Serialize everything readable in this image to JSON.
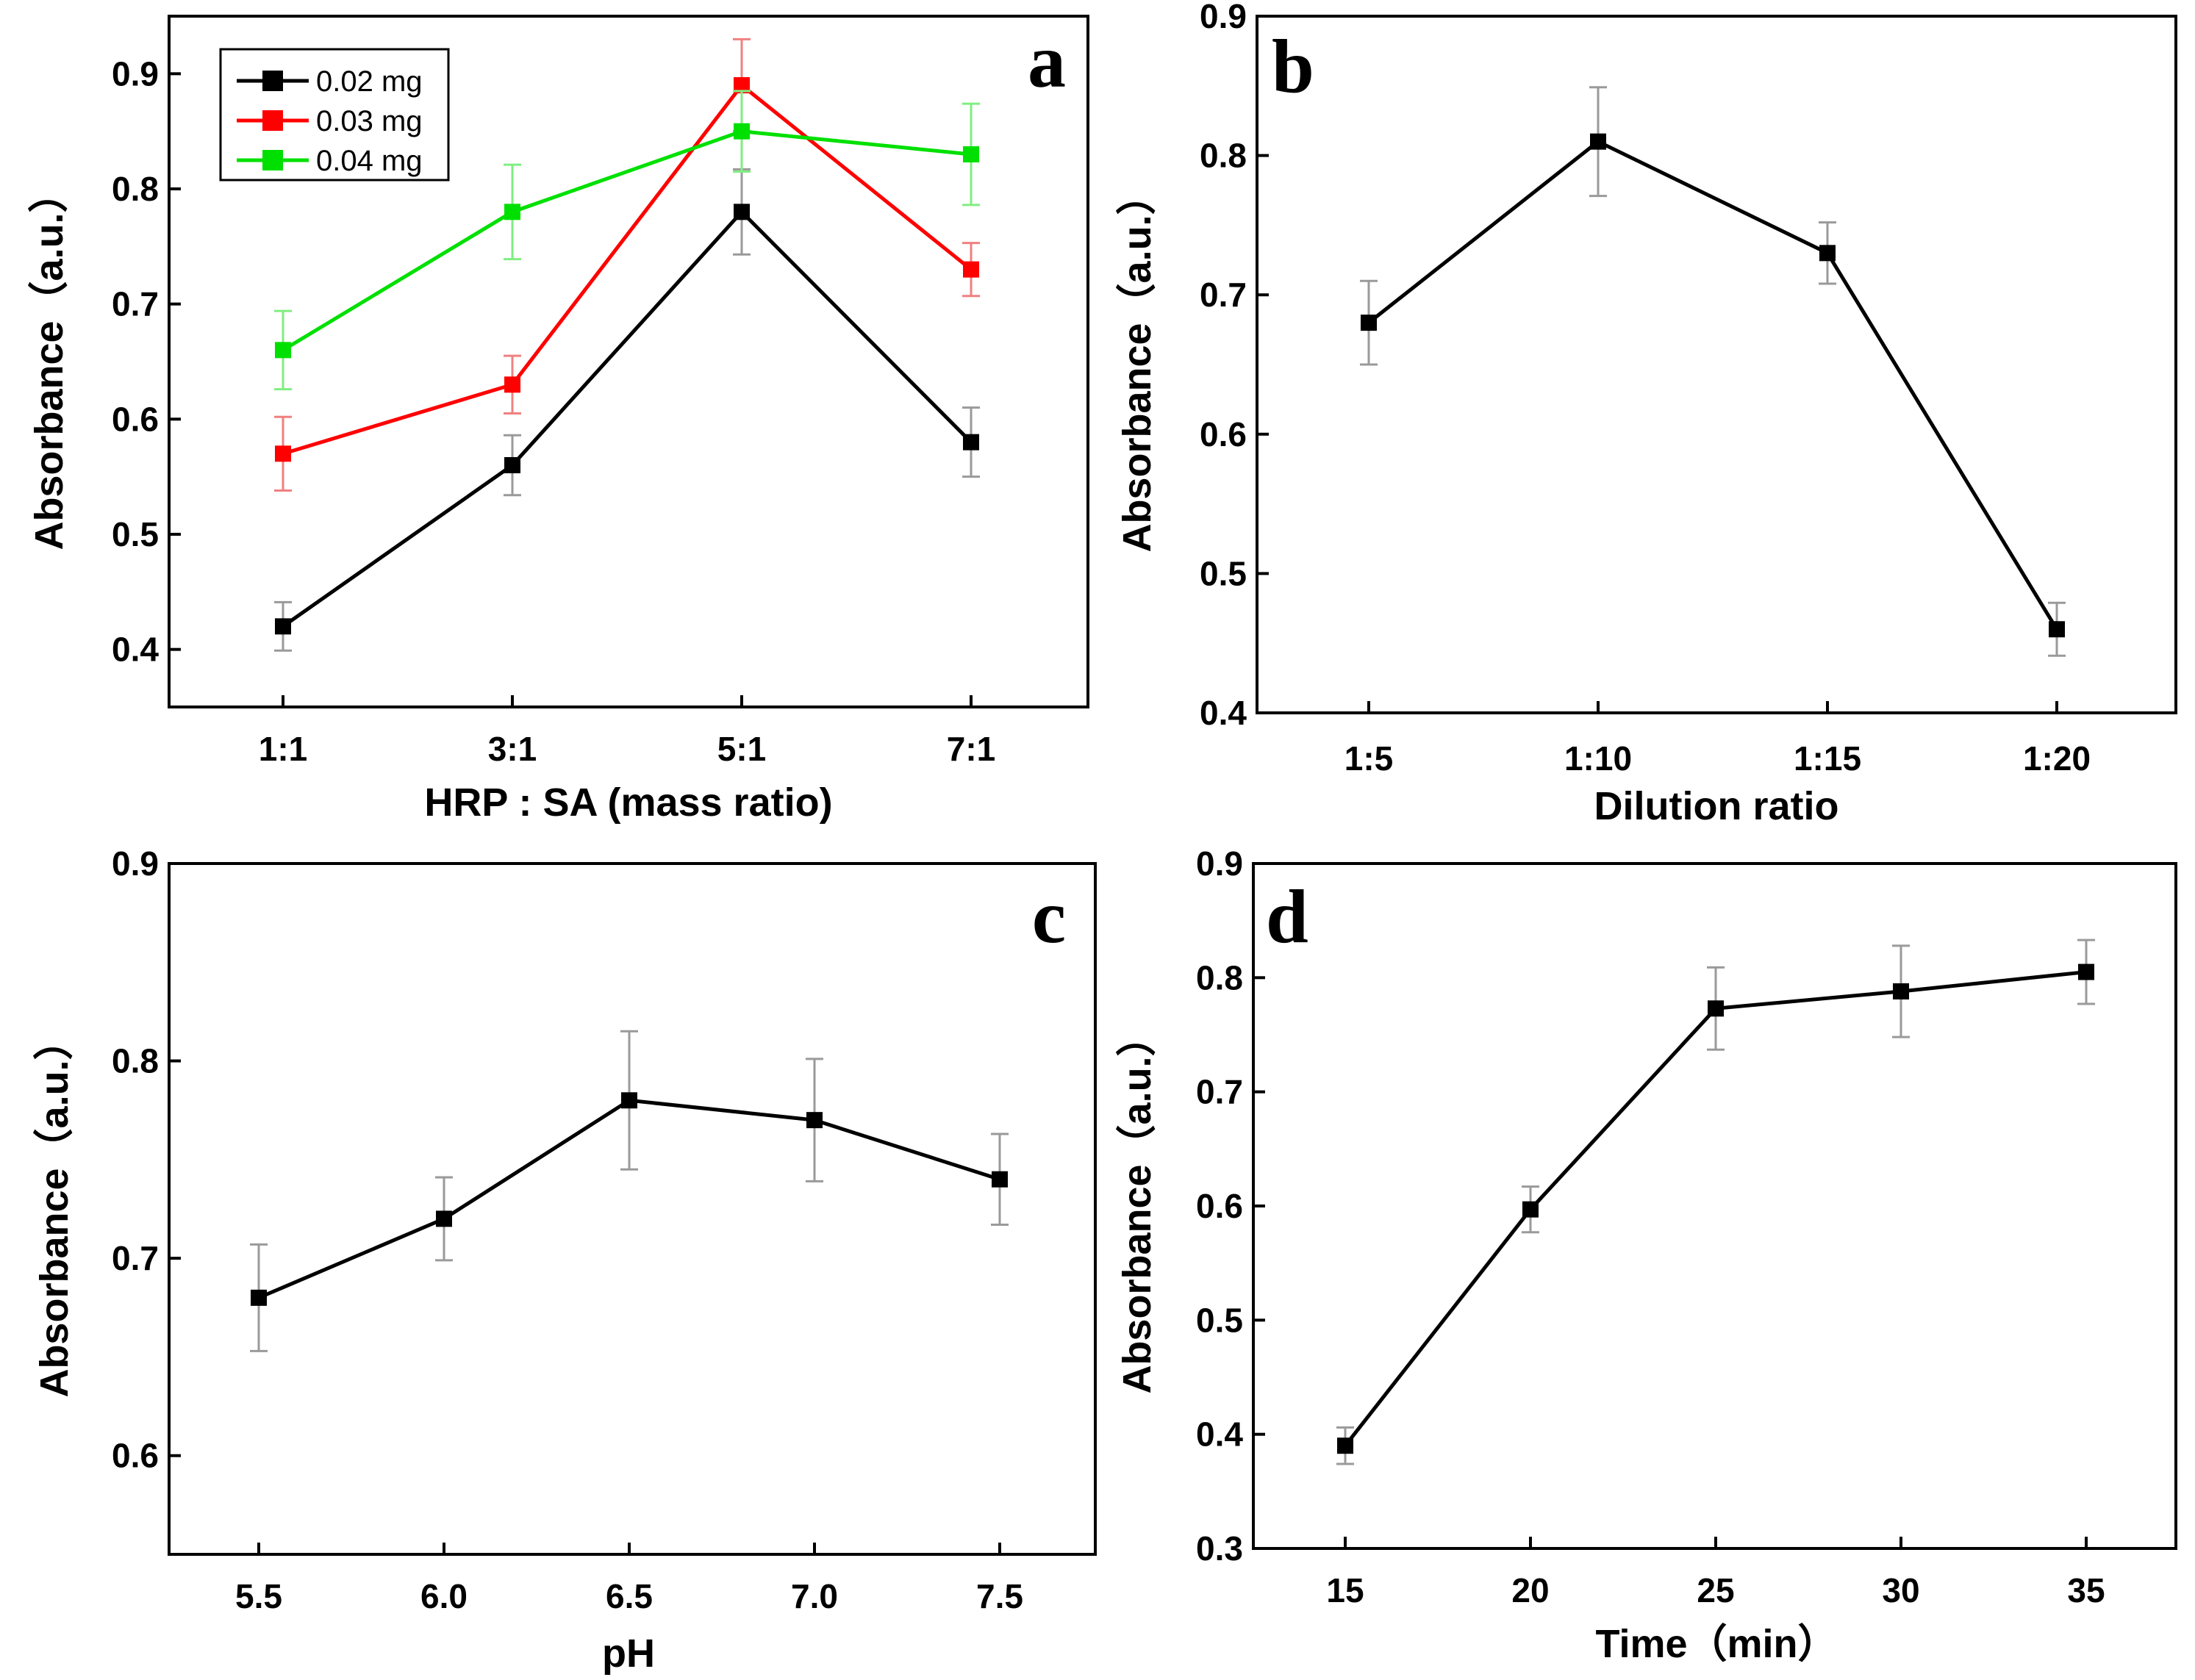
{
  "chart_data": [
    {
      "panel": "a",
      "type": "line",
      "xlabel": "HRP : SA (mass ratio)",
      "ylabel": "Absorbance（a.u.）",
      "categories": [
        "1:1",
        "3:1",
        "5:1",
        "7:1"
      ],
      "ylim": [
        0.35,
        0.95
      ],
      "yticks": [
        "0.4",
        "0.5",
        "0.6",
        "0.7",
        "0.8",
        "0.9"
      ],
      "legend_position": "top-left",
      "series": [
        {
          "name": "0.02 mg",
          "color": "#000000",
          "errColor": "#9a9a9a",
          "values": [
            0.42,
            0.56,
            0.78,
            0.58
          ],
          "errors": [
            0.021,
            0.026,
            0.037,
            0.03
          ]
        },
        {
          "name": "0.03 mg",
          "color": "#ff0000",
          "errColor": "#f08080",
          "values": [
            0.57,
            0.63,
            0.89,
            0.73
          ],
          "errors": [
            0.032,
            0.025,
            0.04,
            0.023
          ]
        },
        {
          "name": "0.04 mg",
          "color": "#00e000",
          "errColor": "#80ee80",
          "values": [
            0.66,
            0.78,
            0.85,
            0.83
          ],
          "errors": [
            0.034,
            0.041,
            0.035,
            0.044
          ]
        }
      ]
    },
    {
      "panel": "b",
      "type": "line",
      "xlabel": "Dilution ratio",
      "ylabel": "Absorbance（a.u.）",
      "categories": [
        "1:5",
        "1:10",
        "1:15",
        "1:20"
      ],
      "ylim": [
        0.4,
        0.9
      ],
      "yticks": [
        "0.4",
        "0.5",
        "0.6",
        "0.7",
        "0.8",
        "0.9"
      ],
      "series": [
        {
          "name": "",
          "color": "#000000",
          "errColor": "#9a9a9a",
          "values": [
            0.68,
            0.81,
            0.73,
            0.46
          ],
          "errors": [
            0.03,
            0.039,
            0.022,
            0.019
          ]
        }
      ]
    },
    {
      "panel": "c",
      "type": "line",
      "xlabel": "pH",
      "ylabel": "Absorbance（a.u.）",
      "categories": [
        "5.5",
        "6.0",
        "6.5",
        "7.0",
        "7.5"
      ],
      "ylim": [
        0.55,
        0.9
      ],
      "yticks": [
        "0.6",
        "0.7",
        "0.8",
        "0.9"
      ],
      "series": [
        {
          "name": "",
          "color": "#000000",
          "errColor": "#9a9a9a",
          "values": [
            0.68,
            0.72,
            0.78,
            0.77,
            0.74
          ],
          "errors": [
            0.027,
            0.021,
            0.035,
            0.031,
            0.023
          ]
        }
      ]
    },
    {
      "panel": "d",
      "type": "line",
      "xlabel": "Time（min）",
      "ylabel": "Absorbance（a.u.）",
      "categories": [
        "15",
        "20",
        "25",
        "30",
        "35"
      ],
      "ylim": [
        0.3,
        0.9
      ],
      "yticks": [
        "0.3",
        "0.4",
        "0.5",
        "0.6",
        "0.7",
        "0.8",
        "0.9"
      ],
      "series": [
        {
          "name": "",
          "color": "#000000",
          "errColor": "#9a9a9a",
          "values": [
            0.39,
            0.597,
            0.773,
            0.788,
            0.805
          ],
          "errors": [
            0.016,
            0.02,
            0.036,
            0.04,
            0.028
          ]
        }
      ]
    }
  ]
}
